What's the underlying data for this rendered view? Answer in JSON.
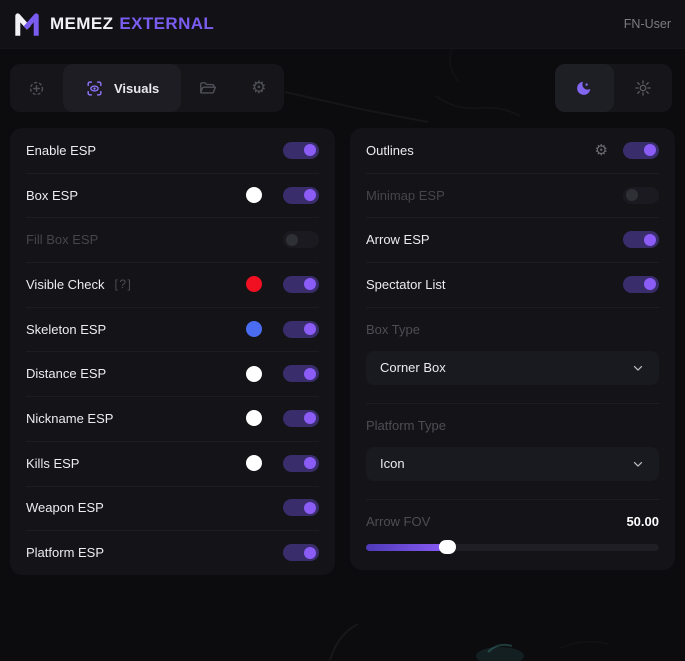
{
  "app": {
    "brand_primary": "MEMEZ",
    "brand_secondary": "EXTERNAL",
    "user_label": "FN-User"
  },
  "toolbar": {
    "tabs": [
      {
        "id": "aim",
        "icon": "crosshair-icon",
        "active": false
      },
      {
        "id": "visuals",
        "icon": "eye-scan-icon",
        "label": "Visuals",
        "active": true
      },
      {
        "id": "configs",
        "icon": "folder-icon",
        "active": false
      },
      {
        "id": "settings",
        "icon": "gear-icon",
        "active": false
      }
    ],
    "theme": {
      "active_mode": "dark",
      "dark_icon": "moon-icon",
      "light_icon": "sun-icon"
    }
  },
  "panels": {
    "left": {
      "rows": [
        {
          "label": "Enable ESP",
          "enabled": true,
          "disabled": false
        },
        {
          "label": "Box ESP",
          "swatch": "#ffffff",
          "enabled": true,
          "disabled": false
        },
        {
          "label": "Fill Box ESP",
          "enabled": false,
          "disabled": true
        },
        {
          "label": "Visible Check",
          "hint": "[?]",
          "swatch": "#f01022",
          "enabled": true,
          "disabled": false
        },
        {
          "label": "Skeleton ESP",
          "swatch": "#4a6cf0",
          "enabled": true,
          "disabled": false
        },
        {
          "label": "Distance ESP",
          "swatch": "#ffffff",
          "enabled": true,
          "disabled": false
        },
        {
          "label": "Nickname ESP",
          "swatch": "#ffffff",
          "enabled": true,
          "disabled": false
        },
        {
          "label": "Kills ESP",
          "swatch": "#ffffff",
          "enabled": true,
          "disabled": false
        },
        {
          "label": "Weapon ESP",
          "enabled": true,
          "disabled": false
        },
        {
          "label": "Platform ESP",
          "enabled": true,
          "disabled": false
        }
      ]
    },
    "right": {
      "rows": [
        {
          "label": "Outlines",
          "has_settings_icon": true,
          "enabled": true,
          "disabled": false
        },
        {
          "label": "Minimap ESP",
          "enabled": false,
          "disabled": true
        },
        {
          "label": "Arrow ESP",
          "enabled": true,
          "disabled": false
        },
        {
          "label": "Spectator List",
          "enabled": true,
          "disabled": false
        }
      ],
      "selects": [
        {
          "label": "Box Type",
          "value": "Corner Box"
        },
        {
          "label": "Platform Type",
          "value": "Icon"
        }
      ],
      "slider": {
        "label": "Arrow FOV",
        "value": "50.00",
        "percent": 28
      }
    }
  },
  "colors": {
    "accent": "#7a5cf0",
    "toggle_on_track": "#3a2d6b",
    "toggle_on_knob": "#8b5cf6",
    "swatch_red": "#f01022",
    "swatch_blue": "#4a6cf0",
    "swatch_white": "#ffffff",
    "panel_bg": "#131318",
    "page_bg": "#0c0c0f"
  }
}
